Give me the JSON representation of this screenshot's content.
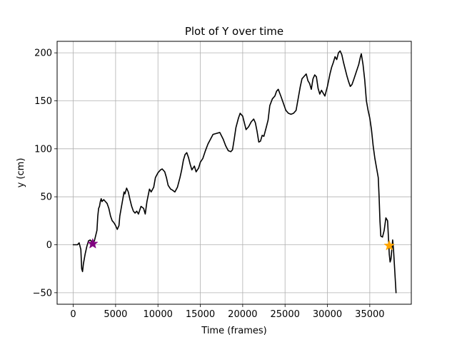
{
  "chart_data": {
    "type": "line",
    "title": "Plot of Y over time",
    "xlabel": "Time (frames)",
    "ylabel": "y (cm)",
    "xlim": [
      -1900,
      39900
    ],
    "ylim": [
      -62,
      212
    ],
    "xticks": [
      0,
      5000,
      10000,
      15000,
      20000,
      25000,
      30000,
      35000
    ],
    "yticks": [
      -50,
      0,
      50,
      100,
      150,
      200
    ],
    "grid": true,
    "series": [
      {
        "color": "#000000",
        "points": [
          [
            0,
            0
          ],
          [
            500,
            0
          ],
          [
            700,
            2
          ],
          [
            900,
            -5
          ],
          [
            1000,
            -25
          ],
          [
            1100,
            -28
          ],
          [
            1200,
            -20
          ],
          [
            1400,
            -10
          ],
          [
            1600,
            -2
          ],
          [
            1800,
            4
          ],
          [
            2000,
            5
          ],
          [
            2200,
            3
          ],
          [
            2500,
            4
          ],
          [
            2800,
            15
          ],
          [
            2900,
            30
          ],
          [
            3000,
            38
          ],
          [
            3100,
            40
          ],
          [
            3200,
            45
          ],
          [
            3300,
            48
          ],
          [
            3400,
            45
          ],
          [
            3600,
            47
          ],
          [
            3800,
            45
          ],
          [
            4000,
            43
          ],
          [
            4200,
            38
          ],
          [
            4400,
            30
          ],
          [
            4600,
            25
          ],
          [
            4800,
            23
          ],
          [
            5000,
            20
          ],
          [
            5200,
            16
          ],
          [
            5400,
            20
          ],
          [
            5500,
            30
          ],
          [
            5700,
            40
          ],
          [
            5900,
            50
          ],
          [
            6000,
            55
          ],
          [
            6100,
            53
          ],
          [
            6300,
            59
          ],
          [
            6500,
            55
          ],
          [
            6700,
            47
          ],
          [
            6900,
            40
          ],
          [
            7100,
            35
          ],
          [
            7300,
            33
          ],
          [
            7500,
            35
          ],
          [
            7700,
            32
          ],
          [
            8000,
            40
          ],
          [
            8300,
            38
          ],
          [
            8500,
            32
          ],
          [
            8700,
            45
          ],
          [
            9000,
            58
          ],
          [
            9200,
            55
          ],
          [
            9500,
            60
          ],
          [
            9700,
            70
          ],
          [
            10000,
            75
          ],
          [
            10300,
            78
          ],
          [
            10500,
            79
          ],
          [
            10800,
            76
          ],
          [
            11000,
            70
          ],
          [
            11200,
            62
          ],
          [
            11500,
            58
          ],
          [
            11700,
            57
          ],
          [
            12000,
            55
          ],
          [
            12300,
            60
          ],
          [
            12600,
            70
          ],
          [
            12800,
            78
          ],
          [
            13000,
            88
          ],
          [
            13200,
            94
          ],
          [
            13400,
            96
          ],
          [
            13600,
            91
          ],
          [
            13800,
            84
          ],
          [
            14000,
            78
          ],
          [
            14300,
            82
          ],
          [
            14500,
            76
          ],
          [
            14800,
            80
          ],
          [
            15000,
            86
          ],
          [
            15300,
            90
          ],
          [
            15600,
            98
          ],
          [
            15900,
            105
          ],
          [
            16200,
            110
          ],
          [
            16500,
            115
          ],
          [
            16900,
            116
          ],
          [
            17300,
            117
          ],
          [
            17700,
            110
          ],
          [
            18000,
            103
          ],
          [
            18300,
            98
          ],
          [
            18600,
            97
          ],
          [
            18800,
            99
          ],
          [
            19000,
            110
          ],
          [
            19200,
            122
          ],
          [
            19500,
            132
          ],
          [
            19700,
            137
          ],
          [
            20000,
            134
          ],
          [
            20200,
            127
          ],
          [
            20400,
            120
          ],
          [
            20700,
            123
          ],
          [
            21000,
            128
          ],
          [
            21300,
            131
          ],
          [
            21500,
            127
          ],
          [
            21700,
            118
          ],
          [
            21900,
            107
          ],
          [
            22100,
            108
          ],
          [
            22300,
            114
          ],
          [
            22500,
            113
          ],
          [
            22800,
            123
          ],
          [
            23000,
            130
          ],
          [
            23200,
            145
          ],
          [
            23500,
            152
          ],
          [
            23800,
            155
          ],
          [
            24000,
            160
          ],
          [
            24200,
            162
          ],
          [
            24500,
            155
          ],
          [
            24700,
            150
          ],
          [
            24900,
            145
          ],
          [
            25100,
            140
          ],
          [
            25400,
            137
          ],
          [
            25700,
            136
          ],
          [
            26000,
            137
          ],
          [
            26300,
            140
          ],
          [
            26500,
            150
          ],
          [
            26800,
            165
          ],
          [
            27000,
            173
          ],
          [
            27300,
            176
          ],
          [
            27500,
            178
          ],
          [
            27700,
            171
          ],
          [
            27900,
            168
          ],
          [
            28100,
            162
          ],
          [
            28300,
            173
          ],
          [
            28500,
            177
          ],
          [
            28700,
            175
          ],
          [
            28900,
            163
          ],
          [
            29100,
            157
          ],
          [
            29300,
            161
          ],
          [
            29500,
            158
          ],
          [
            29700,
            155
          ],
          [
            30000,
            165
          ],
          [
            30300,
            178
          ],
          [
            30500,
            185
          ],
          [
            30700,
            190
          ],
          [
            30900,
            196
          ],
          [
            31100,
            193
          ],
          [
            31300,
            200
          ],
          [
            31500,
            202
          ],
          [
            31700,
            198
          ],
          [
            31900,
            190
          ],
          [
            32100,
            183
          ],
          [
            32300,
            176
          ],
          [
            32500,
            170
          ],
          [
            32700,
            165
          ],
          [
            32900,
            167
          ],
          [
            33100,
            172
          ],
          [
            33400,
            180
          ],
          [
            33700,
            188
          ],
          [
            33900,
            196
          ],
          [
            34000,
            199
          ],
          [
            34200,
            188
          ],
          [
            34400,
            172
          ],
          [
            34600,
            150
          ],
          [
            34800,
            140
          ],
          [
            35000,
            132
          ],
          [
            35200,
            120
          ],
          [
            35400,
            103
          ],
          [
            35600,
            90
          ],
          [
            35800,
            80
          ],
          [
            36000,
            70
          ],
          [
            36100,
            50
          ],
          [
            36200,
            25
          ],
          [
            36300,
            9
          ],
          [
            36500,
            8
          ],
          [
            36700,
            15
          ],
          [
            36900,
            28
          ],
          [
            37100,
            25
          ],
          [
            37200,
            8
          ],
          [
            37300,
            -10
          ],
          [
            37400,
            -18
          ],
          [
            37500,
            -15
          ],
          [
            37600,
            -5
          ],
          [
            37700,
            5
          ],
          [
            37800,
            -5
          ],
          [
            37900,
            -20
          ],
          [
            38000,
            -35
          ],
          [
            38100,
            -50
          ]
        ]
      }
    ],
    "markers": [
      {
        "x": 2300,
        "y": 1,
        "shape": "star",
        "color": "#800080"
      },
      {
        "x": 37300,
        "y": -1,
        "shape": "star",
        "color": "#ffa500"
      }
    ]
  }
}
